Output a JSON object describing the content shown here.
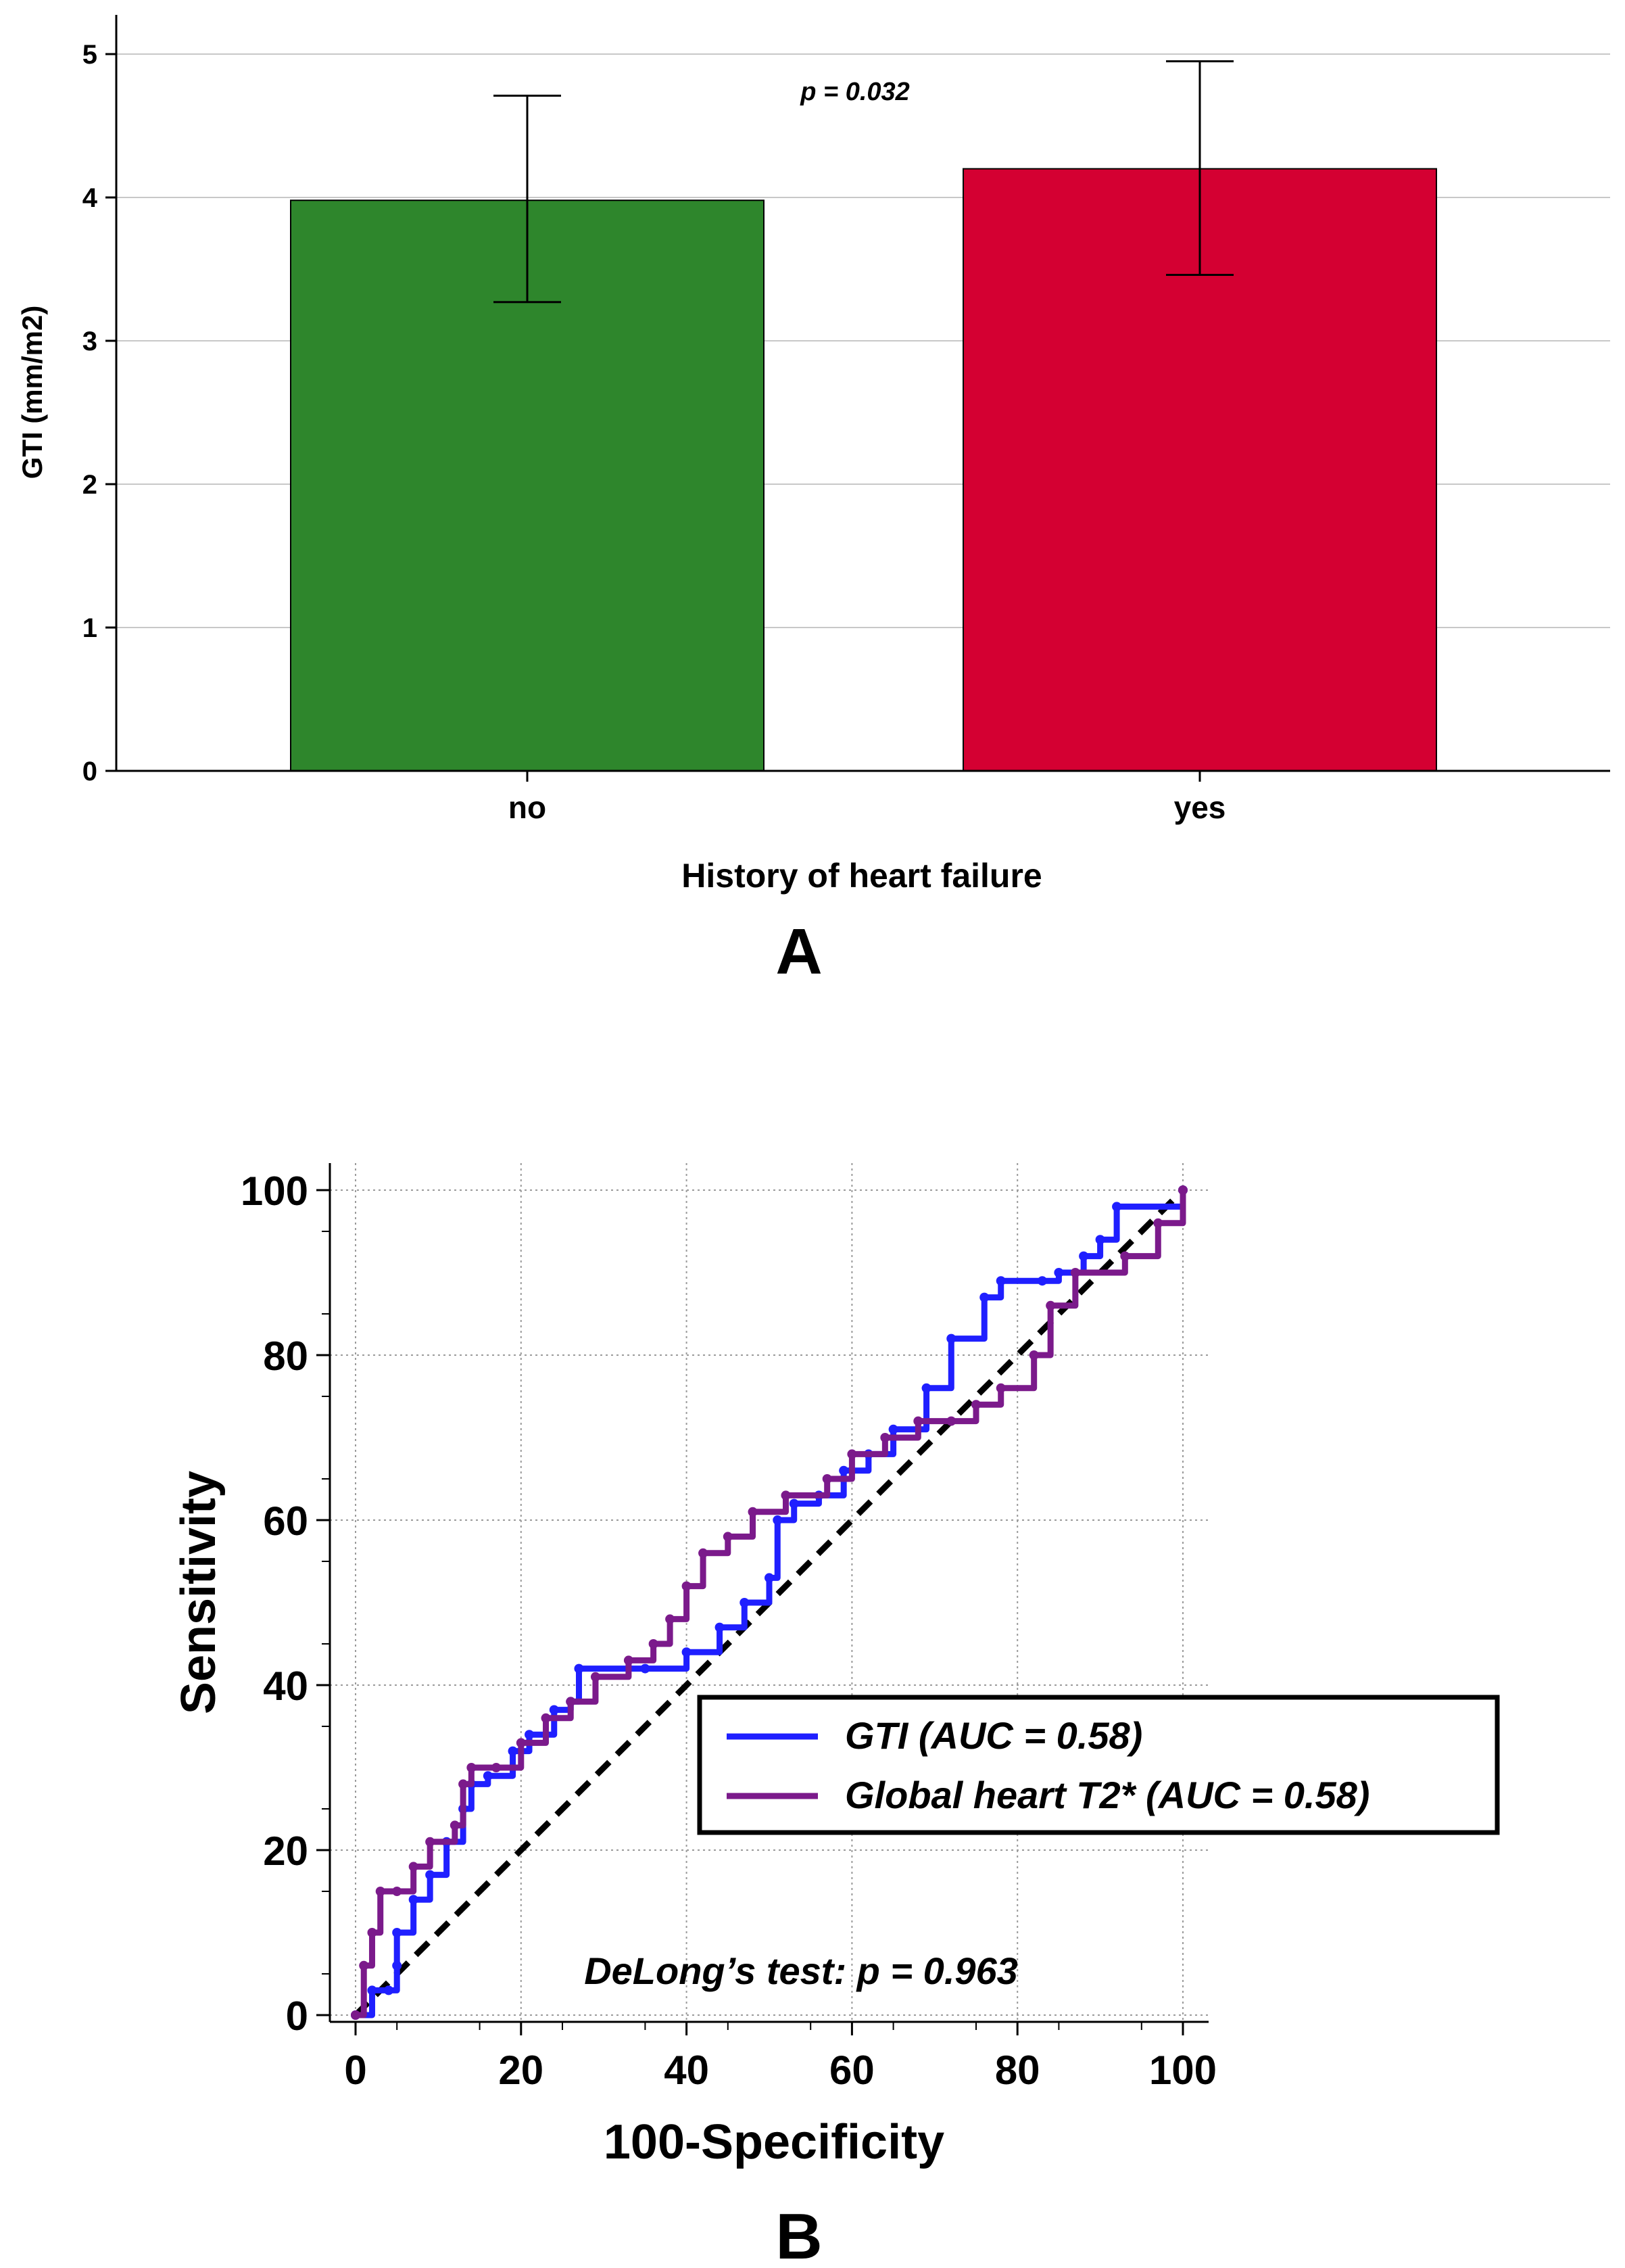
{
  "chart_data": [
    {
      "type": "bar",
      "panel_label": "A",
      "title": "",
      "xlabel": "History of heart failure",
      "ylabel": "GTI (mm/m2)",
      "ylim": [
        0,
        5
      ],
      "yticks": [
        "0",
        "1",
        "2",
        "3",
        "4",
        "5"
      ],
      "grid": "horizontal",
      "categories": [
        "no",
        "yes"
      ],
      "values": [
        3.98,
        4.2
      ],
      "error_low": [
        3.27,
        3.46
      ],
      "error_high": [
        4.71,
        4.95
      ],
      "colors": [
        "#2e862c",
        "#d40032"
      ],
      "annotation": "p = 0.032"
    },
    {
      "type": "line",
      "panel_label": "B",
      "title": "",
      "xlabel": "100-Specificity",
      "ylabel": "Sensitivity",
      "xlim": [
        0,
        100
      ],
      "ylim": [
        0,
        100
      ],
      "xticks": [
        "0",
        "20",
        "40",
        "60",
        "80",
        "100"
      ],
      "yticks": [
        "0",
        "20",
        "40",
        "60",
        "80",
        "100"
      ],
      "grid": "dotted",
      "legend_position": "center-right",
      "annotation": "DeLong’s test: p = 0.963",
      "series": [
        {
          "name": "GTI (AUC = 0.58)",
          "color": "#1f1fff",
          "x": [
            0,
            2,
            4,
            5,
            5,
            7,
            9,
            11,
            13,
            14,
            16,
            19,
            21,
            24,
            26,
            27,
            35,
            40,
            44,
            47,
            50,
            51,
            53,
            56,
            59,
            62,
            65,
            69,
            72,
            76,
            78,
            83,
            85,
            88,
            90,
            92,
            100
          ],
          "y": [
            0,
            3,
            3,
            6,
            10,
            14,
            17,
            21,
            25,
            28,
            29,
            32,
            34,
            37,
            38,
            42,
            42,
            44,
            47,
            50,
            53,
            60,
            62,
            63,
            66,
            68,
            71,
            76,
            82,
            87,
            89,
            89,
            90,
            92,
            94,
            98,
            100
          ]
        },
        {
          "name": "Global heart T2* (AUC = 0.58)",
          "color": "#7b1a8b",
          "x": [
            0,
            1,
            2,
            3,
            5,
            7,
            9,
            12,
            13,
            14,
            17,
            20,
            23,
            26,
            29,
            33,
            36,
            38,
            40,
            42,
            45,
            48,
            52,
            57,
            60,
            64,
            68,
            72,
            75,
            78,
            82,
            84,
            87,
            93,
            97,
            100
          ],
          "y": [
            0,
            6,
            10,
            15,
            15,
            18,
            21,
            23,
            28,
            30,
            30,
            33,
            36,
            38,
            41,
            43,
            45,
            48,
            52,
            56,
            58,
            61,
            63,
            65,
            68,
            70,
            72,
            72,
            74,
            76,
            80,
            86,
            90,
            92,
            96,
            100
          ]
        },
        {
          "name": "",
          "color": "#000000",
          "dashed": true,
          "x": [
            0,
            100
          ],
          "y": [
            0,
            100
          ]
        }
      ]
    }
  ]
}
